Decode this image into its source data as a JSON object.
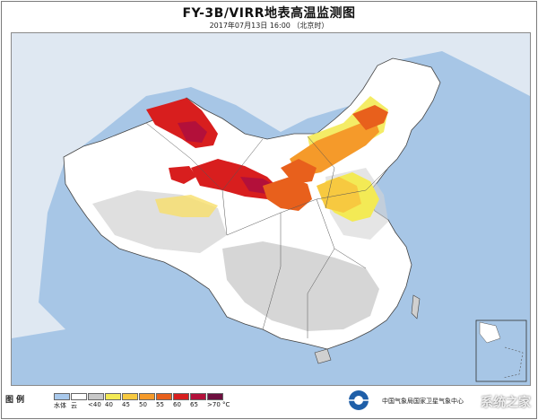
{
  "header": {
    "title": "FY-3B/VIRR地表高温监测图",
    "subtitle": "2017年07月13日 16:00 （北京时）"
  },
  "legend": {
    "title": "图 例",
    "items": [
      {
        "label": "水体",
        "color": "#a9c9ec"
      },
      {
        "label": "云",
        "color": "#ffffff"
      },
      {
        "label": "<40",
        "color": "#c8c8c8"
      },
      {
        "label": "40",
        "color": "#f3ea55"
      },
      {
        "label": "45",
        "color": "#f7c940"
      },
      {
        "label": "50",
        "color": "#f59a2a"
      },
      {
        "label": "55",
        "color": "#e8601c"
      },
      {
        "label": "60",
        "color": "#d81e1e"
      },
      {
        "label": "65",
        "color": "#b3103a"
      },
      {
        "label": ">70",
        "color": "#6d0f3f"
      }
    ],
    "unit": "°C"
  },
  "footer": {
    "org_text": "中国气象局国家卫星气象中心",
    "watermark": "系统之家"
  },
  "colors": {
    "water": "#a7c6e6",
    "land_white": "#ffffff",
    "land_gray": "#c8c8c8",
    "boundary": "#333333"
  }
}
